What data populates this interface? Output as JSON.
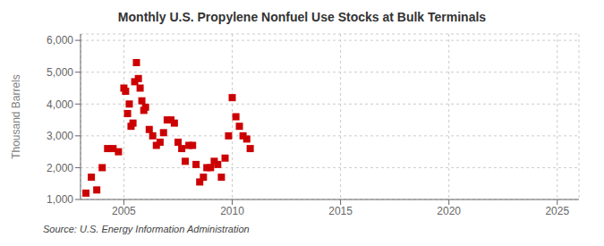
{
  "chart_data": {
    "type": "scatter",
    "title": "Monthly U.S. Propylene Nonfuel Use Stocks at Bulk Terminals",
    "ylabel": "Thousand Barrels",
    "annotations": [
      "Source: U.S. Energy Information Administration"
    ],
    "color": "#cc0000",
    "marker": "square",
    "grid": true,
    "xlim": [
      2003,
      2026
    ],
    "xticks": [
      2005,
      2010,
      2015,
      2020,
      2025
    ],
    "ylim": [
      1000,
      6200
    ],
    "yticks": [
      {
        "value": 1000,
        "label": "1,000"
      },
      {
        "value": 2000,
        "label": "2,000"
      },
      {
        "value": 3000,
        "label": "3,000"
      },
      {
        "value": 4000,
        "label": "4,000"
      },
      {
        "value": 5000,
        "label": "5,000"
      },
      {
        "value": 6000,
        "label": "6,000"
      }
    ],
    "x": [
      2003.25,
      2003.5,
      2003.75,
      2004.0,
      2004.25,
      2004.5,
      2004.75,
      2005.0,
      2005.08,
      2005.17,
      2005.25,
      2005.33,
      2005.42,
      2005.5,
      2005.58,
      2005.67,
      2005.75,
      2005.83,
      2005.92,
      2006.0,
      2006.17,
      2006.33,
      2006.5,
      2006.67,
      2006.83,
      2007.0,
      2007.17,
      2007.33,
      2007.5,
      2007.67,
      2007.83,
      2008.0,
      2008.17,
      2008.33,
      2008.5,
      2008.67,
      2008.83,
      2009.0,
      2009.17,
      2009.33,
      2009.5,
      2009.67,
      2009.83,
      2010.0,
      2010.17,
      2010.33,
      2010.5,
      2010.67,
      2010.83
    ],
    "values": [
      1200,
      1700,
      1300,
      2000,
      2600,
      2600,
      2500,
      4500,
      4400,
      3700,
      4000,
      3300,
      3400,
      4700,
      5300,
      4800,
      4500,
      4100,
      3800,
      3900,
      3200,
      3000,
      2700,
      2800,
      3100,
      3500,
      3500,
      3400,
      2800,
      2600,
      2200,
      2700,
      2700,
      2100,
      1550,
      1700,
      2000,
      2000,
      2200,
      2100,
      1700,
      2300,
      3000,
      4200,
      3600,
      3300,
      3000,
      2900,
      2600
    ]
  }
}
